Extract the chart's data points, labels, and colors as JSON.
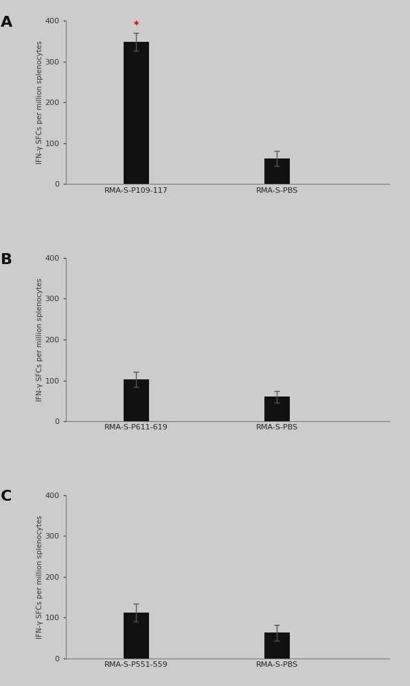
{
  "panels": [
    {
      "label": "A",
      "categories": [
        "RMA-S-P109-117",
        "RMA-S-PBS"
      ],
      "values": [
        348,
        63
      ],
      "errors": [
        22,
        18
      ],
      "ylim": [
        0,
        400
      ],
      "yticks": [
        0,
        100,
        200,
        300,
        400
      ],
      "star_on": 0,
      "ylabel": "IFN-γ SFCs per million splenocytes"
    },
    {
      "label": "B",
      "categories": [
        "RMA-S-P611-619",
        "RMA-S-PBS"
      ],
      "values": [
        103,
        60
      ],
      "errors": [
        18,
        15
      ],
      "ylim": [
        0,
        400
      ],
      "yticks": [
        0,
        100,
        200,
        300,
        400
      ],
      "star_on": -1,
      "ylabel": "IFN-γ SFCs per million splenocytes"
    },
    {
      "label": "C",
      "categories": [
        "RMA-S-P551-559",
        "RMA-S-PBS"
      ],
      "values": [
        112,
        63
      ],
      "errors": [
        22,
        20
      ],
      "ylim": [
        0,
        400
      ],
      "yticks": [
        0,
        100,
        200,
        300,
        400
      ],
      "star_on": -1,
      "ylabel": "IFN-γ SFCs per million splenocytes"
    }
  ],
  "bar_color": "#111111",
  "bar_width": 0.18,
  "bar_positions": [
    1,
    2
  ],
  "xlim": [
    0.5,
    2.8
  ],
  "background_color": "#cccccc",
  "panel_label_fontsize": 16,
  "tick_fontsize": 8,
  "ylabel_fontsize": 7.5,
  "xlabel_fontsize": 8,
  "star_color": "#cc0000",
  "star_fontsize": 10,
  "error_color": "#555555"
}
